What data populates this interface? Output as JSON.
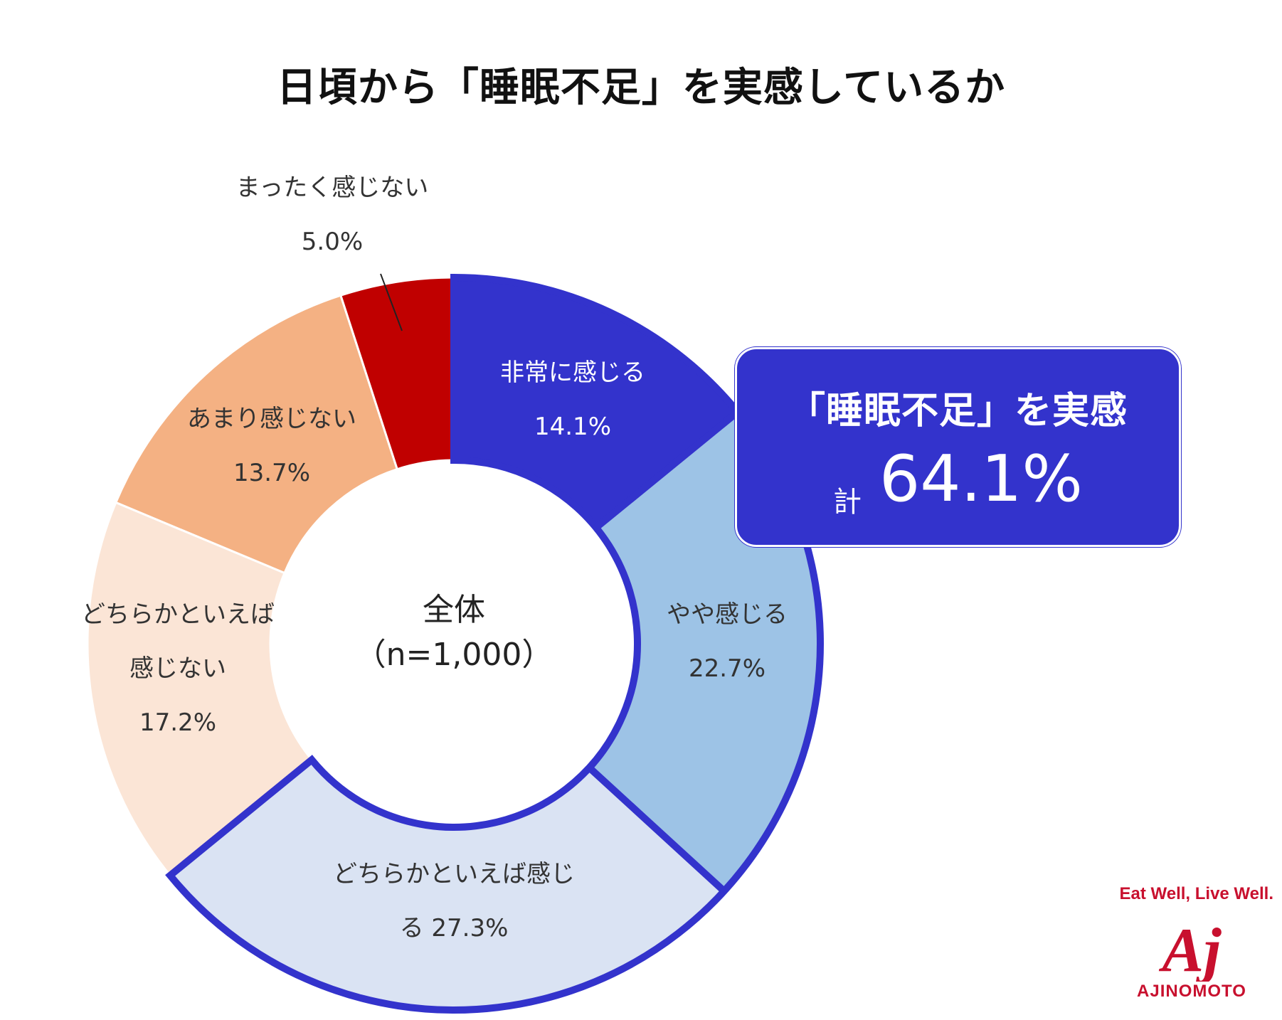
{
  "chart_data": {
    "type": "donut",
    "title": "日頃から「睡眠不足」を実感しているか",
    "center_label": [
      "全体",
      "（n=1,000）"
    ],
    "slices": [
      {
        "label_lines": [
          "非常に感じる",
          "14.1%"
        ],
        "value": 14.1,
        "color": "#3333cc",
        "highlighted": true
      },
      {
        "label_lines": [
          "やや感じる",
          "22.7%"
        ],
        "value": 22.7,
        "color": "#9dc3e6",
        "highlighted": true
      },
      {
        "label_lines": [
          "どちらかといえば感じ",
          "る 27.3%"
        ],
        "value": 27.3,
        "color": "#dae3f3",
        "highlighted": true
      },
      {
        "label_lines": [
          "どちらかといえば",
          "感じない",
          "17.2%"
        ],
        "value": 17.2,
        "color": "#fbe5d6",
        "highlighted": false
      },
      {
        "label_lines": [
          "あまり感じない",
          "13.7%"
        ],
        "value": 13.7,
        "color": "#f4b183",
        "highlighted": false
      },
      {
        "label_lines": [
          "まったく感じない",
          "5.0%"
        ],
        "value": 5.0,
        "color": "#c00000",
        "highlighted": false
      }
    ],
    "highlight_color": "#3333cc"
  },
  "callout": {
    "title": "「睡眠不足」を実感",
    "prefix": "計",
    "value": "64.1%",
    "background": "#3333cc"
  },
  "logo": {
    "slogan": "Eat Well, Live Well.",
    "mark": "Aj",
    "brand": "AJINOMOTO",
    "color": "#c8102e"
  }
}
